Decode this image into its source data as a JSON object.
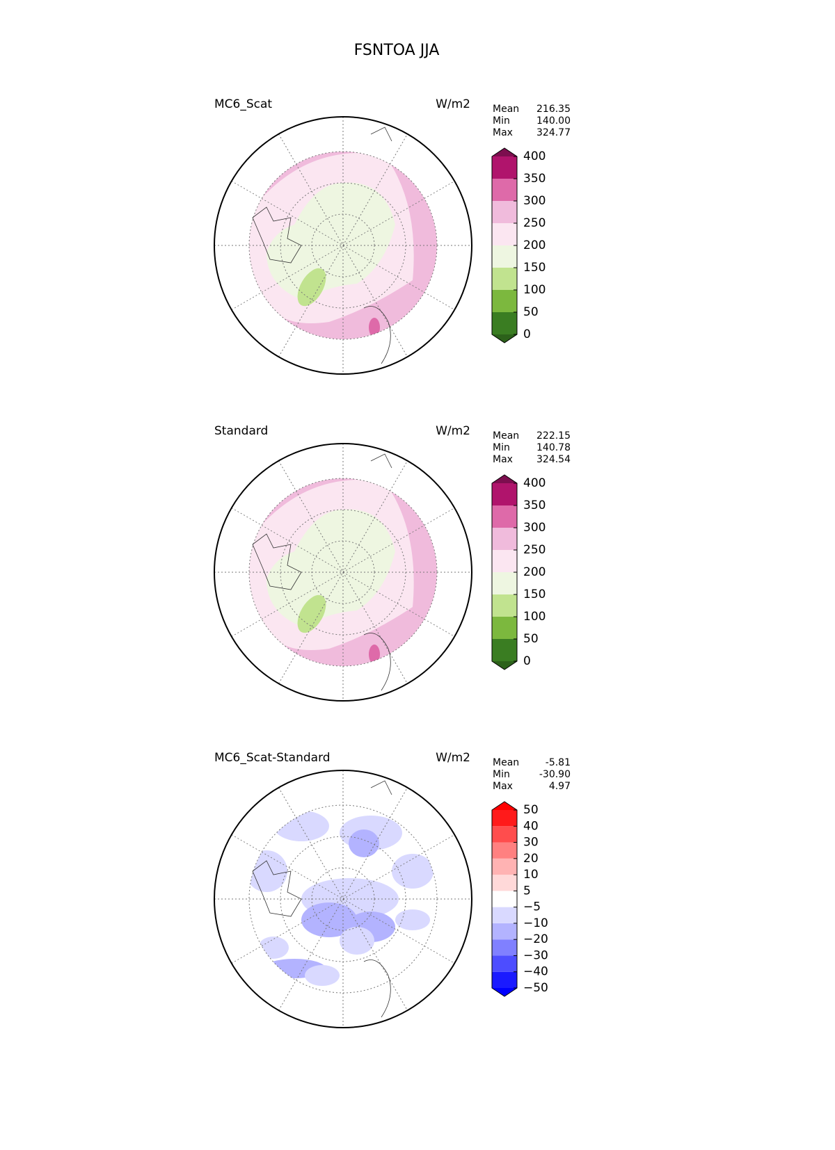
{
  "title": "FSNTOA JJA",
  "panels": [
    {
      "name": "MC6_Scat",
      "units": "W/m2",
      "stats": [
        {
          "label": "Mean",
          "value": "216.35"
        },
        {
          "label": "Min",
          "value": "140.00"
        },
        {
          "label": "Max",
          "value": "324.77"
        }
      ],
      "colorbar": {
        "levels": [
          0,
          50,
          100,
          150,
          200,
          250,
          300,
          350,
          400
        ],
        "colors": [
          "#3a7d22",
          "#7cb83e",
          "#c1e38f",
          "#eef6e1",
          "#fbe6f1",
          "#f0bbdc",
          "#de6aa9",
          "#b0146c"
        ],
        "under": "#2c611a",
        "over": "#7d0e4f"
      }
    },
    {
      "name": "Standard",
      "units": "W/m2",
      "stats": [
        {
          "label": "Mean",
          "value": "222.15"
        },
        {
          "label": "Min",
          "value": "140.78"
        },
        {
          "label": "Max",
          "value": "324.54"
        }
      ],
      "colorbar": {
        "levels": [
          0,
          50,
          100,
          150,
          200,
          250,
          300,
          350,
          400
        ],
        "colors": [
          "#3a7d22",
          "#7cb83e",
          "#c1e38f",
          "#eef6e1",
          "#fbe6f1",
          "#f0bbdc",
          "#de6aa9",
          "#b0146c"
        ],
        "under": "#2c611a",
        "over": "#7d0e4f"
      }
    },
    {
      "name": "MC6_Scat-Standard",
      "units": "W/m2",
      "stats": [
        {
          "label": "Mean",
          "value": "-5.81"
        },
        {
          "label": "Min",
          "value": "-30.90"
        },
        {
          "label": "Max",
          "value": "4.97"
        }
      ],
      "colorbar": {
        "levels": [
          {
            "value": -50,
            "label": "−50"
          },
          {
            "value": -40,
            "label": "−40"
          },
          {
            "value": -30,
            "label": "−30"
          },
          {
            "value": -20,
            "label": "−20"
          },
          {
            "value": -10,
            "label": "−10"
          },
          {
            "value": -5,
            "label": "−5"
          },
          5,
          10,
          20,
          30,
          40,
          50
        ],
        "colors": [
          "#1a1aff",
          "#4d4dff",
          "#8080ff",
          "#b3b3ff",
          "#d9d9ff",
          "#ffffff",
          "#ffd9d9",
          "#ffb3b3",
          "#ff8080",
          "#ff4d4d",
          "#ff1a1a"
        ],
        "under": "#0000ff",
        "over": "#ff0000"
      }
    }
  ]
}
